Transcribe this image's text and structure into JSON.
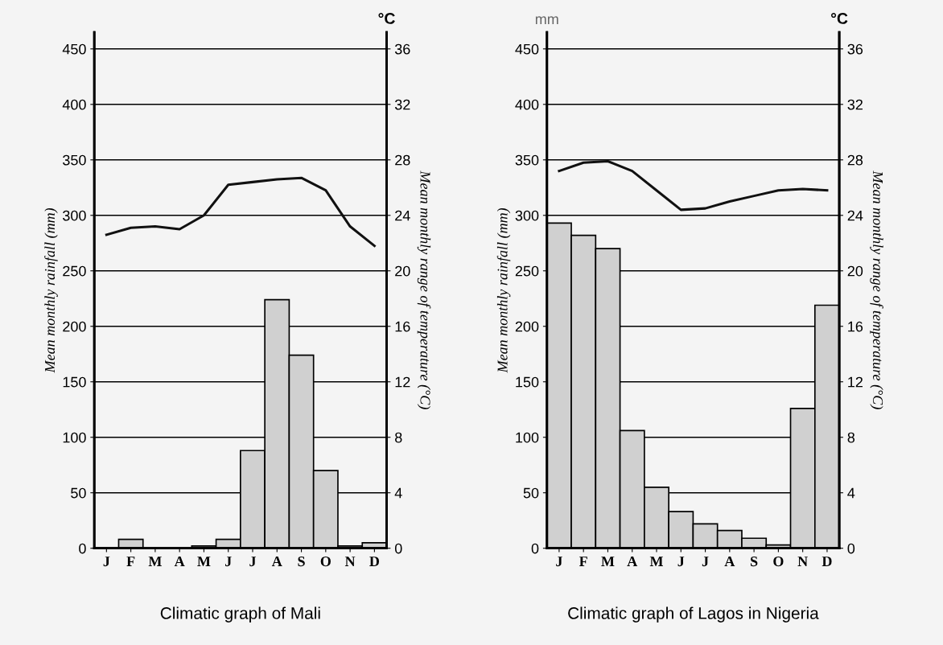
{
  "chart_data": [
    {
      "type": "bar",
      "title": "Climatic graph of Mali",
      "ylabel": "Mean monthly rainfall (mm)",
      "y2label": "Mean monthly range of temperature (°C)",
      "categories": [
        "J",
        "F",
        "M",
        "A",
        "M",
        "J",
        "J",
        "A",
        "S",
        "O",
        "N",
        "D"
      ],
      "series": [
        {
          "color": "#d0d0d0",
          "values": [
            null,
            8,
            null,
            null,
            2,
            8,
            88,
            224,
            174,
            70,
            2,
            5
          ]
        },
        {
          "type": "line",
          "axis": "y2",
          "color": "#111111",
          "values": [
            22.6,
            23.1,
            23.2,
            23.0,
            24.0,
            26.2,
            26.4,
            26.6,
            26.7,
            25.8,
            23.2,
            21.8
          ]
        }
      ],
      "ylim": [
        0,
        465
      ],
      "yticks": [
        0,
        50,
        100,
        150,
        200,
        250,
        300,
        350,
        400,
        450
      ],
      "y2lim": [
        0,
        37.2
      ],
      "y2ticks": [
        0,
        4,
        8,
        12,
        16,
        20,
        24,
        28,
        32,
        36
      ],
      "grid": "y",
      "annotations": [
        "°C"
      ]
    },
    {
      "type": "bar",
      "title": "Climatic graph of Lagos in Nigeria",
      "ylabel": "Mean monthly rainfall (mm)",
      "y2label": "Mean monthly range of temperature (°C)",
      "categories": [
        "J",
        "F",
        "M",
        "A",
        "M",
        "J",
        "J",
        "A",
        "S",
        "O",
        "N",
        "D"
      ],
      "series": [
        {
          "color": "#d0d0d0",
          "values": [
            293,
            282,
            270,
            106,
            55,
            33,
            22,
            16,
            9,
            3,
            126,
            219
          ]
        },
        {
          "type": "line",
          "axis": "y2",
          "color": "#111111",
          "values": [
            27.2,
            27.8,
            27.9,
            27.2,
            25.8,
            24.4,
            24.5,
            25.0,
            25.4,
            25.8,
            25.9,
            25.8
          ]
        }
      ],
      "ylim": [
        0,
        465
      ],
      "yticks": [
        0,
        50,
        100,
        150,
        200,
        250,
        300,
        350,
        400,
        450
      ],
      "y2lim": [
        0,
        37.2
      ],
      "y2ticks": [
        0,
        4,
        8,
        12,
        16,
        20,
        24,
        28,
        32,
        36
      ],
      "grid": "y",
      "annotations": [
        "mm",
        "°C"
      ]
    }
  ]
}
